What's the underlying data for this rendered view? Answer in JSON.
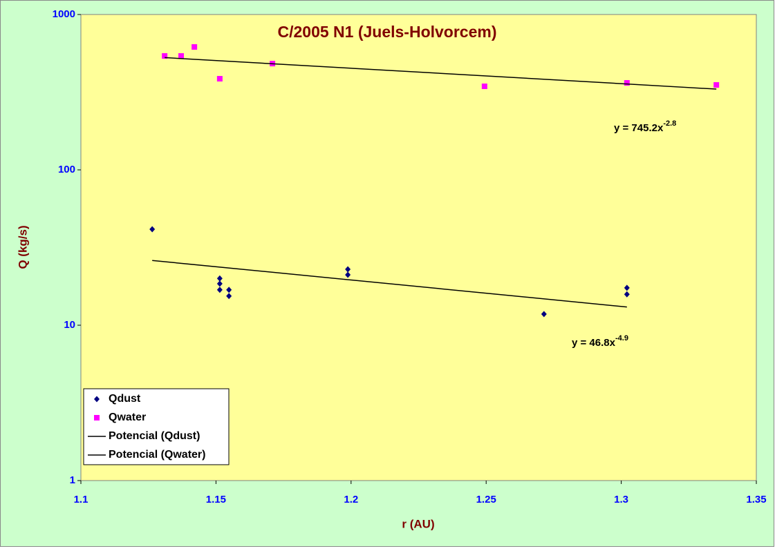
{
  "chart_data": {
    "type": "scatter",
    "title": "C/2005 N1 (Juels-Holvorcem)",
    "x_label": "r (AU)",
    "y_label": "Q (kg/s)",
    "log_y": true,
    "grid": false,
    "legend_position": "lower-left",
    "xlim": [
      1.1,
      1.35
    ],
    "xticks": [
      1.1,
      1.15,
      1.2,
      1.25,
      1.3,
      1.35
    ],
    "ylim": [
      1,
      1000
    ],
    "yticks": [
      1,
      10,
      100,
      1000
    ],
    "series": [
      {
        "name": "Qdust",
        "kind": "points",
        "marker": "diamond",
        "color": "#000080",
        "x": [
          1.1264,
          1.1514,
          1.1514,
          1.1514,
          1.1548,
          1.1548,
          1.1988,
          1.1988,
          1.2714,
          1.3021,
          1.3021
        ],
        "values": [
          41.5,
          20.0,
          18.5,
          16.9,
          16.9,
          15.4,
          22.9,
          21.1,
          11.8,
          17.4,
          15.8
        ]
      },
      {
        "name": "Qwater",
        "kind": "points",
        "marker": "square",
        "color": "#ff00ff",
        "x": [
          1.131,
          1.1371,
          1.142,
          1.1514,
          1.1709,
          1.2494,
          1.3021,
          1.3352
        ],
        "values": [
          541,
          541,
          618,
          386,
          483,
          345,
          363,
          352
        ]
      },
      {
        "name": "Potencial (Qdust)",
        "kind": "trend",
        "color": "#000000",
        "x": [
          1.1264,
          1.3021
        ],
        "values": [
          26.1,
          13.1
        ],
        "equation": "y = 46.8x",
        "equation_exponent": "-4.9"
      },
      {
        "name": "Potencial (Qwater)",
        "kind": "trend",
        "color": "#000000",
        "x": [
          1.131,
          1.3352
        ],
        "values": [
          528,
          331
        ],
        "equation": "y = 745.2x",
        "equation_exponent": "-2.8"
      }
    ]
  }
}
